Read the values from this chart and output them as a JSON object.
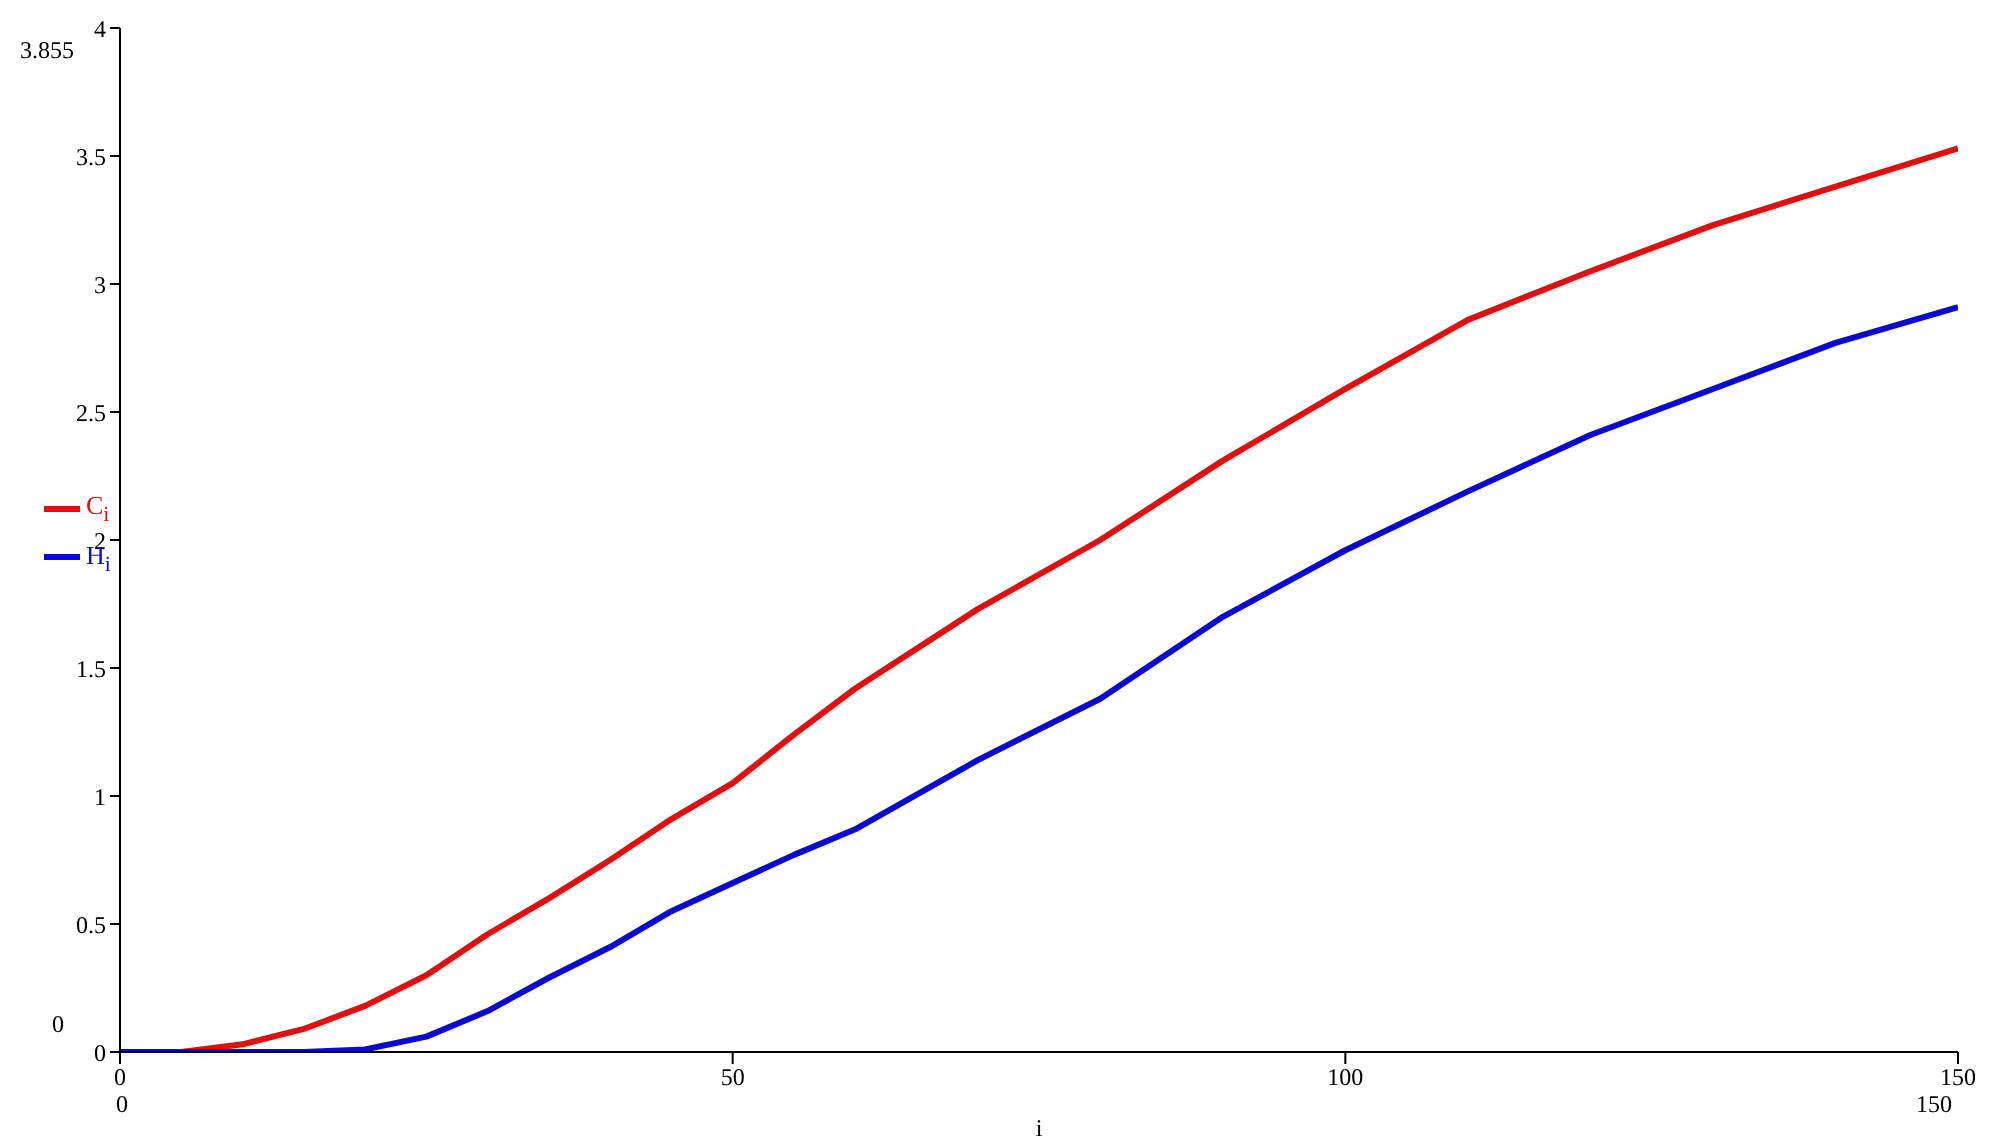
{
  "chart_data": {
    "type": "line",
    "xlabel": "i",
    "x": [
      0,
      5,
      10,
      15,
      20,
      25,
      30,
      35,
      40,
      45,
      50,
      55,
      60,
      70,
      80,
      90,
      100,
      110,
      120,
      130,
      140,
      150
    ],
    "series": [
      {
        "name": "C$_{i}$",
        "color": "#e01010",
        "values": [
          0,
          0,
          0.03,
          0.09,
          0.18,
          0.3,
          0.46,
          0.6,
          0.75,
          0.91,
          1.05,
          1.24,
          1.42,
          1.73,
          2.0,
          2.31,
          2.59,
          2.86,
          3.05,
          3.23,
          3.38,
          3.53
        ]
      },
      {
        "name": "H$_{i}$",
        "color": "#0a0ad0",
        "values": [
          0,
          0,
          0,
          0,
          0.01,
          0.06,
          0.16,
          0.29,
          0.41,
          0.55,
          0.66,
          0.77,
          0.87,
          1.14,
          1.38,
          1.7,
          1.96,
          2.19,
          2.41,
          2.59,
          2.77,
          2.91
        ]
      }
    ],
    "xlim": [
      0,
      150
    ],
    "xticks": [
      0,
      50,
      100,
      150
    ],
    "ylim": [
      0,
      4
    ],
    "yticks": [
      0,
      0.5,
      1,
      1.5,
      2,
      2.5,
      3,
      3.5,
      4
    ],
    "grid": false,
    "legend": "left",
    "marker": "none",
    "line_style": "solid",
    "annotations": [
      "3.855",
      "0",
      "0",
      "150"
    ]
  }
}
